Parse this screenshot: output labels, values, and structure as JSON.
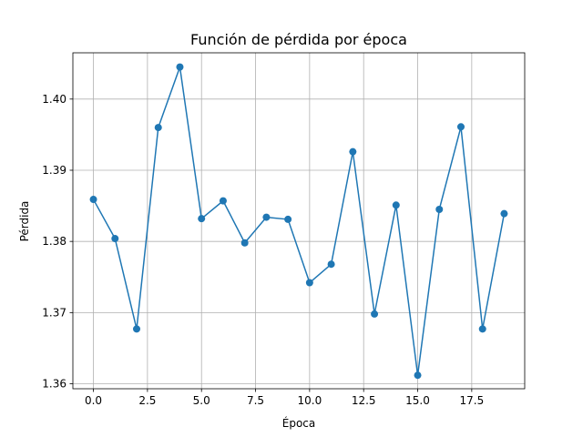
{
  "chart_data": {
    "type": "line",
    "title": "Función de pérdida por época",
    "xlabel": "Época",
    "ylabel": "Pérdida",
    "grid": true,
    "marker": "circle",
    "xlim": [
      -0.95,
      19.95
    ],
    "ylim": [
      1.3593,
      1.4065
    ],
    "xticks": [
      0.0,
      2.5,
      5.0,
      7.5,
      10.0,
      12.5,
      15.0,
      17.5
    ],
    "xtick_labels": [
      "0.0",
      "2.5",
      "5.0",
      "7.5",
      "10.0",
      "12.5",
      "15.0",
      "17.5"
    ],
    "yticks": [
      1.36,
      1.37,
      1.38,
      1.39,
      1.4
    ],
    "ytick_labels": [
      "1.36",
      "1.37",
      "1.38",
      "1.39",
      "1.40"
    ],
    "series": [
      {
        "color": "#1f77b4",
        "x": [
          0,
          1,
          2,
          3,
          4,
          5,
          6,
          7,
          8,
          9,
          10,
          11,
          12,
          13,
          14,
          15,
          16,
          17,
          18,
          19
        ],
        "values": [
          1.3859,
          1.3804,
          1.3677,
          1.396,
          1.4045,
          1.3832,
          1.3857,
          1.3798,
          1.3834,
          1.3831,
          1.3742,
          1.3768,
          1.3926,
          1.3698,
          1.3851,
          1.3612,
          1.3845,
          1.3961,
          1.3677,
          1.3839
        ]
      }
    ]
  }
}
